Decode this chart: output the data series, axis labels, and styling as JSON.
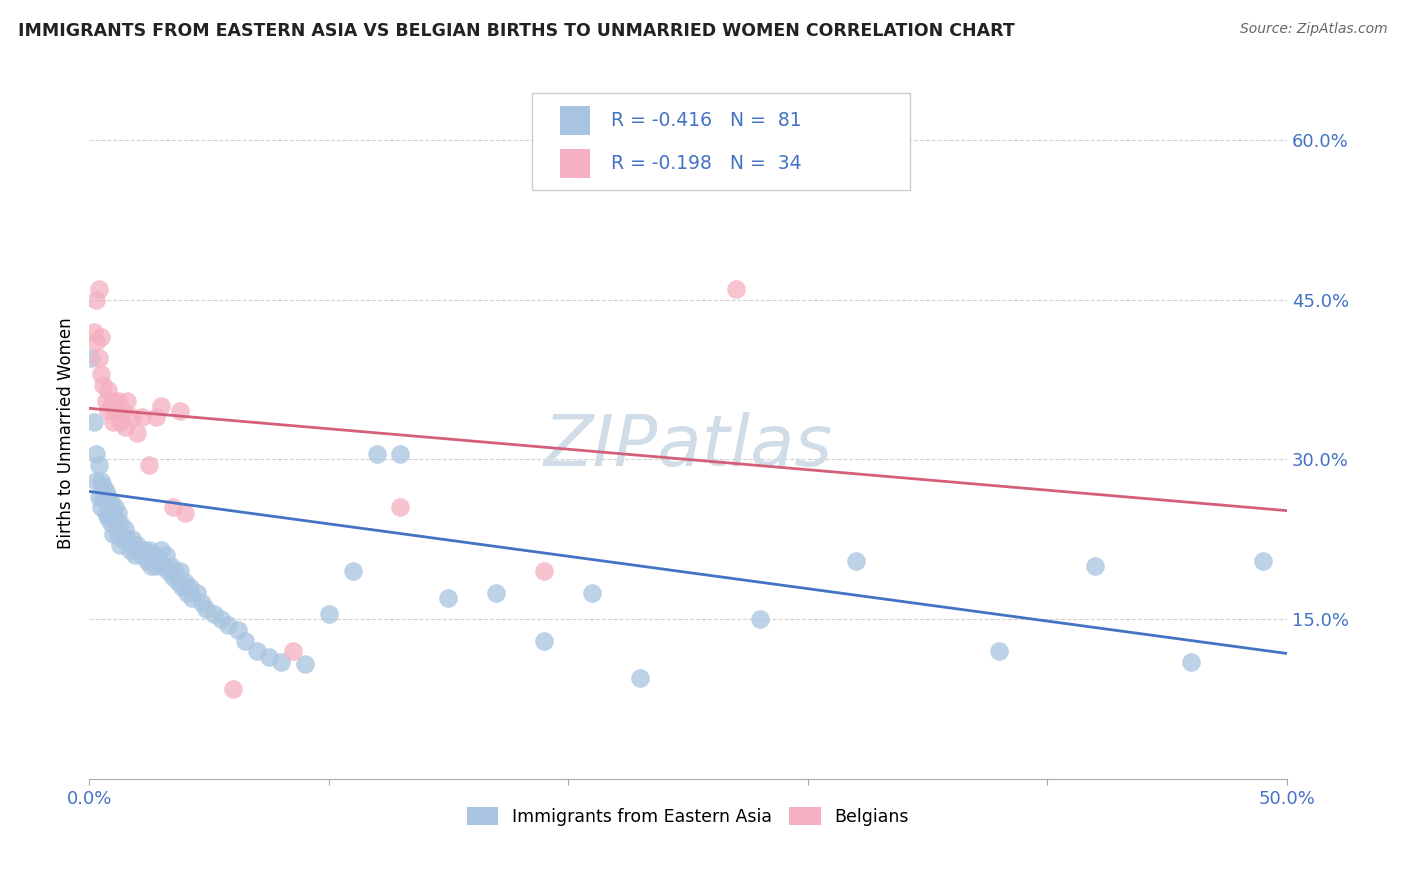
{
  "title": "IMMIGRANTS FROM EASTERN ASIA VS BELGIAN BIRTHS TO UNMARRIED WOMEN CORRELATION CHART",
  "source": "Source: ZipAtlas.com",
  "ylabel": "Births to Unmarried Women",
  "yticks": [
    "60.0%",
    "45.0%",
    "30.0%",
    "15.0%"
  ],
  "ytick_vals": [
    0.6,
    0.45,
    0.3,
    0.15
  ],
  "xlim": [
    0.0,
    0.5
  ],
  "ylim": [
    0.0,
    0.65
  ],
  "series1_color": "#a8c4e0",
  "series2_color": "#f4afc0",
  "trendline1_color": "#4472c4",
  "trendline2_color": "#d45f7a",
  "legend_label1": "Immigrants from Eastern Asia",
  "legend_label2": "Belgians",
  "background_color": "#ffffff",
  "grid_color": "#cccccc",
  "blue_text_color": "#4472c4",
  "trendline1_y0": 0.27,
  "trendline1_y1": 0.118,
  "trendline2_y0": 0.348,
  "trendline2_y1": 0.252,
  "watermark": "ZIPatlas",
  "watermark_color": "#d0dce8",
  "series1_x": [
    0.001,
    0.002,
    0.003,
    0.003,
    0.004,
    0.004,
    0.005,
    0.005,
    0.006,
    0.006,
    0.007,
    0.007,
    0.008,
    0.008,
    0.009,
    0.009,
    0.01,
    0.01,
    0.011,
    0.011,
    0.012,
    0.012,
    0.013,
    0.013,
    0.014,
    0.015,
    0.016,
    0.017,
    0.018,
    0.019,
    0.02,
    0.021,
    0.022,
    0.023,
    0.024,
    0.025,
    0.026,
    0.027,
    0.028,
    0.029,
    0.03,
    0.031,
    0.032,
    0.033,
    0.034,
    0.035,
    0.036,
    0.037,
    0.038,
    0.039,
    0.04,
    0.041,
    0.042,
    0.043,
    0.045,
    0.047,
    0.049,
    0.052,
    0.055,
    0.058,
    0.062,
    0.065,
    0.07,
    0.075,
    0.08,
    0.09,
    0.1,
    0.11,
    0.12,
    0.13,
    0.15,
    0.17,
    0.19,
    0.21,
    0.23,
    0.28,
    0.32,
    0.38,
    0.42,
    0.46,
    0.49
  ],
  "series1_y": [
    0.395,
    0.335,
    0.28,
    0.305,
    0.265,
    0.295,
    0.28,
    0.255,
    0.265,
    0.275,
    0.25,
    0.27,
    0.245,
    0.265,
    0.24,
    0.26,
    0.23,
    0.25,
    0.245,
    0.255,
    0.23,
    0.25,
    0.22,
    0.24,
    0.225,
    0.235,
    0.225,
    0.215,
    0.225,
    0.21,
    0.22,
    0.215,
    0.21,
    0.215,
    0.205,
    0.215,
    0.2,
    0.21,
    0.2,
    0.205,
    0.215,
    0.2,
    0.21,
    0.195,
    0.2,
    0.19,
    0.195,
    0.185,
    0.195,
    0.18,
    0.185,
    0.175,
    0.18,
    0.17,
    0.175,
    0.165,
    0.16,
    0.155,
    0.15,
    0.145,
    0.14,
    0.13,
    0.12,
    0.115,
    0.11,
    0.108,
    0.155,
    0.195,
    0.305,
    0.305,
    0.17,
    0.175,
    0.13,
    0.175,
    0.095,
    0.15,
    0.205,
    0.12,
    0.2,
    0.11,
    0.205
  ],
  "series2_x": [
    0.002,
    0.003,
    0.003,
    0.004,
    0.004,
    0.005,
    0.005,
    0.006,
    0.007,
    0.008,
    0.008,
    0.009,
    0.01,
    0.01,
    0.011,
    0.012,
    0.013,
    0.014,
    0.015,
    0.016,
    0.018,
    0.02,
    0.022,
    0.025,
    0.028,
    0.03,
    0.035,
    0.038,
    0.04,
    0.06,
    0.085,
    0.13,
    0.19,
    0.27
  ],
  "series2_y": [
    0.42,
    0.45,
    0.41,
    0.46,
    0.395,
    0.415,
    0.38,
    0.37,
    0.355,
    0.365,
    0.345,
    0.35,
    0.355,
    0.335,
    0.345,
    0.355,
    0.335,
    0.345,
    0.33,
    0.355,
    0.34,
    0.325,
    0.34,
    0.295,
    0.34,
    0.35,
    0.255,
    0.345,
    0.25,
    0.085,
    0.12,
    0.255,
    0.195,
    0.46
  ]
}
